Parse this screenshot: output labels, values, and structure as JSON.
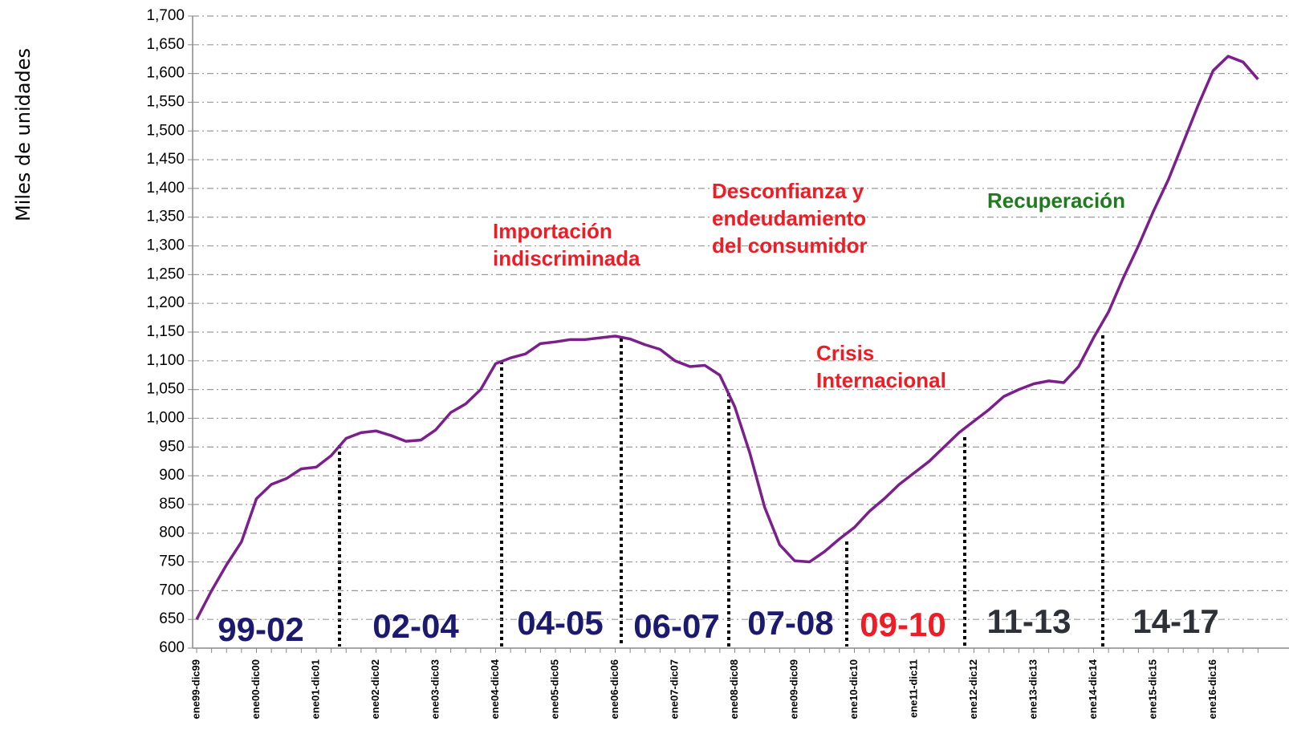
{
  "chart_data": {
    "type": "line",
    "y_label": "Miles de unidades",
    "categories": [
      "ene99-dic99",
      null,
      null,
      null,
      "ene00-dic00",
      null,
      null,
      null,
      "ene01-dic01",
      null,
      null,
      null,
      "ene02-dic02",
      null,
      null,
      null,
      "ene03-dic03",
      null,
      null,
      null,
      "ene04-dic04",
      null,
      null,
      null,
      "ene05-dic05",
      null,
      null,
      null,
      "ene06-dic06",
      null,
      null,
      null,
      "ene07-dic07",
      null,
      null,
      null,
      "ene08-dic08",
      null,
      null,
      null,
      "ene09-dic09",
      null,
      null,
      null,
      "ene10-dic10",
      null,
      null,
      null,
      "ene11-dic11",
      null,
      null,
      null,
      "ene12-dic12",
      null,
      null,
      null,
      "ene13-dic13",
      null,
      null,
      null,
      "ene14-dic14",
      null,
      null,
      null,
      "ene15-dic15",
      null,
      null,
      null,
      "ene16-dic16",
      null,
      null,
      null
    ],
    "series": [
      {
        "color": "#7b1f8c",
        "values": [
          650,
          700,
          745,
          785,
          860,
          885,
          895,
          912,
          915,
          935,
          965,
          975,
          978,
          970,
          960,
          962,
          980,
          1010,
          1025,
          1050,
          1095,
          1105,
          1112,
          1130,
          1133,
          1137,
          1137,
          1140,
          1143,
          1138,
          1128,
          1120,
          1100,
          1090,
          1092,
          1075,
          1020,
          940,
          845,
          780,
          752,
          750,
          768,
          790,
          810,
          838,
          860,
          885,
          905,
          925,
          950,
          975,
          995,
          1015,
          1038,
          1050,
          1060,
          1065,
          1062,
          1090,
          1140,
          1185,
          1245,
          1300,
          1360,
          1415,
          1480,
          1545,
          1605,
          1630,
          1620,
          1590
        ]
      }
    ],
    "ylim": [
      600,
      1700
    ],
    "yticks": [
      600,
      650,
      700,
      750,
      800,
      850,
      900,
      950,
      {
        "value": 1000,
        "label": "1,000"
      },
      {
        "value": 1050,
        "label": "1,050"
      },
      {
        "value": 1100,
        "label": "1,100"
      },
      {
        "value": 1150,
        "label": "1,150"
      },
      {
        "value": 1200,
        "label": "1,200"
      },
      {
        "value": 1250,
        "label": "1,250"
      },
      {
        "value": 1300,
        "label": "1,300"
      },
      {
        "value": 1350,
        "label": "1,350"
      },
      {
        "value": 1400,
        "label": "1,400"
      },
      {
        "value": 1450,
        "label": "1,450"
      },
      {
        "value": 1500,
        "label": "1,500"
      },
      {
        "value": 1550,
        "label": "1,550"
      },
      {
        "value": 1600,
        "label": "1,600"
      },
      {
        "value": 1650,
        "label": "1,650"
      },
      {
        "value": 1700,
        "label": "1,700"
      }
    ],
    "grid": true,
    "periods": [
      {
        "label": "99-02",
        "color": "#1b1a6e"
      },
      {
        "label": "02-04",
        "color": "#1b1a6e"
      },
      {
        "label": "04-05",
        "color": "#1b1a6e"
      },
      {
        "label": "06-07",
        "color": "#1b1a6e"
      },
      {
        "label": "07-08",
        "color": "#1b1a6e"
      },
      {
        "label": "09-10",
        "color": "#ee1c24"
      },
      {
        "label": "11-13",
        "color": "#2e3138"
      },
      {
        "label": "14-17",
        "color": "#2e3138"
      }
    ],
    "annotations": [
      {
        "lines": [
          "Importación",
          "indiscriminada"
        ],
        "color": "#ee1c24"
      },
      {
        "lines": [
          "Desconfianza y",
          "endeudamiento",
          "del consumidor"
        ],
        "color": "#ee1c24"
      },
      {
        "lines": [
          "Crisis",
          "Internacional"
        ],
        "color": "#ee1c24"
      },
      {
        "lines": [
          "Recuperación"
        ],
        "color": "#1e7b1e"
      }
    ]
  }
}
